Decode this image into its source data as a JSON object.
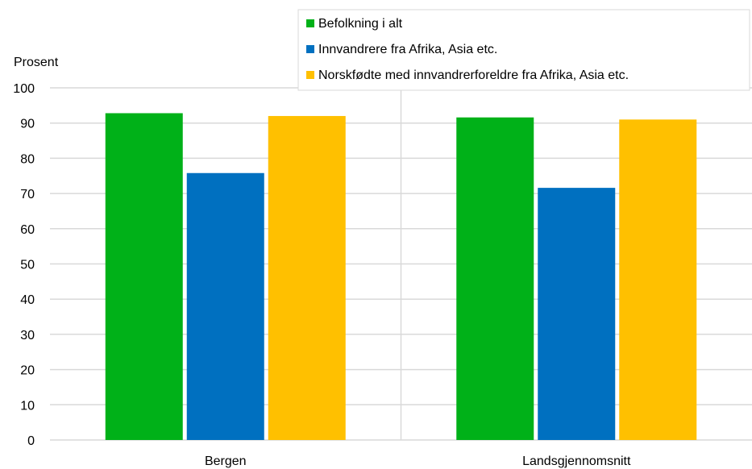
{
  "chart_data": {
    "type": "bar",
    "ylabel": "Prosent",
    "ylim": [
      0,
      100
    ],
    "yticks": [
      0,
      10,
      20,
      30,
      40,
      50,
      60,
      70,
      80,
      90,
      100
    ],
    "categories": [
      "Bergen",
      "Landsgjennomsnitt"
    ],
    "series": [
      {
        "name": "Befolkning i alt",
        "values": [
          92.8,
          91.6
        ],
        "color": "#00b118"
      },
      {
        "name": "Innvandrere fra Afrika, Asia etc.",
        "values": [
          75.8,
          71.6
        ],
        "color": "#0070c0"
      },
      {
        "name": "Norskfødte med innvandrerforeldre fra Afrika, Asia etc.",
        "values": [
          92,
          91
        ],
        "color": "#ffc000"
      }
    ],
    "grid": true,
    "legend_position": "top-right"
  }
}
